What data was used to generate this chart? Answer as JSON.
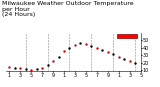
{
  "title": "Milwaukee Weather Outdoor Temperature\nper Hour\n(24 Hours)",
  "background_color": "#ffffff",
  "plot_bg_color": "#ffffff",
  "grid_color": "#888888",
  "dot_color_main": "#dd0000",
  "dot_color_dark": "#000000",
  "legend_box_color": "#ff0000",
  "legend_box_edge": "#880000",
  "xlim": [
    0.5,
    24.5
  ],
  "ylim": [
    8,
    60
  ],
  "yticks": [
    10,
    20,
    30,
    40,
    50
  ],
  "xtick_labels": [
    "1",
    "3",
    "5",
    "7",
    "9",
    "1",
    "3",
    "5",
    "7",
    "9",
    "1",
    "3",
    "5"
  ],
  "xtick_positions": [
    1,
    3,
    5,
    7,
    9,
    11,
    13,
    15,
    17,
    19,
    21,
    23,
    25
  ],
  "vgrid_positions": [
    4,
    8,
    12,
    16,
    20,
    24
  ],
  "hours": [
    1,
    2,
    3,
    4,
    5,
    6,
    7,
    8,
    9,
    10,
    11,
    12,
    13,
    14,
    15,
    16,
    17,
    18,
    19,
    20,
    21,
    22,
    23,
    24
  ],
  "temps": [
    14,
    13,
    12,
    11,
    10,
    11,
    13,
    17,
    22,
    28,
    35,
    40,
    44,
    46,
    45,
    43,
    40,
    37,
    34,
    31,
    28,
    25,
    22,
    19
  ],
  "scatter_size": 3,
  "title_fontsize": 4.5,
  "tick_fontsize": 3.5
}
